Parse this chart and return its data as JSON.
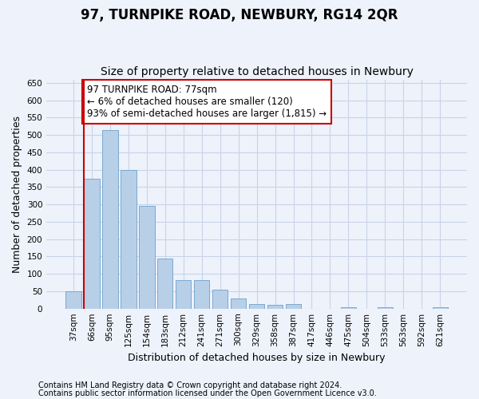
{
  "title": "97, TURNPIKE ROAD, NEWBURY, RG14 2QR",
  "subtitle": "Size of property relative to detached houses in Newbury",
  "xlabel": "Distribution of detached houses by size in Newbury",
  "ylabel": "Number of detached properties",
  "categories": [
    "37sqm",
    "66sqm",
    "95sqm",
    "125sqm",
    "154sqm",
    "183sqm",
    "212sqm",
    "241sqm",
    "271sqm",
    "300sqm",
    "329sqm",
    "358sqm",
    "387sqm",
    "417sqm",
    "446sqm",
    "475sqm",
    "504sqm",
    "533sqm",
    "563sqm",
    "592sqm",
    "621sqm"
  ],
  "values": [
    50,
    375,
    515,
    400,
    295,
    143,
    82,
    82,
    55,
    30,
    12,
    10,
    12,
    0,
    0,
    5,
    0,
    5,
    0,
    0,
    5
  ],
  "bar_color": "#b8cfe8",
  "bar_edge_color": "#7aaad0",
  "grid_color": "#c8d4e8",
  "background_color": "#eef2fb",
  "vline_x_index": 1,
  "vline_color": "#cc0000",
  "annotation_text": "97 TURNPIKE ROAD: 77sqm\n← 6% of detached houses are smaller (120)\n93% of semi-detached houses are larger (1,815) →",
  "annotation_box_color": "#ffffff",
  "annotation_box_edge_color": "#cc0000",
  "ylim": [
    0,
    660
  ],
  "yticks": [
    0,
    50,
    100,
    150,
    200,
    250,
    300,
    350,
    400,
    450,
    500,
    550,
    600,
    650
  ],
  "footnote1": "Contains HM Land Registry data © Crown copyright and database right 2024.",
  "footnote2": "Contains public sector information licensed under the Open Government Licence v3.0.",
  "title_fontsize": 12,
  "subtitle_fontsize": 10,
  "label_fontsize": 9,
  "tick_fontsize": 7.5,
  "annotation_fontsize": 8.5,
  "footnote_fontsize": 7
}
